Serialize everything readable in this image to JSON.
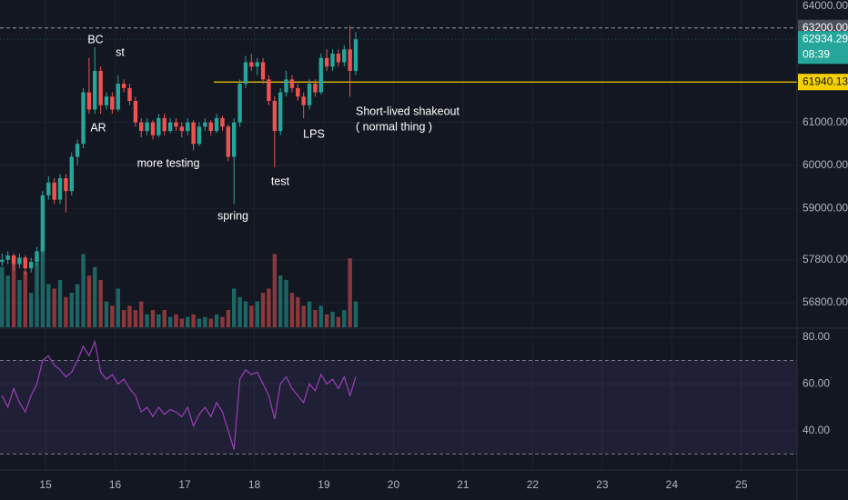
{
  "chart_data": {
    "type": "candlestick",
    "up_color": "#26a69a",
    "down_color": "#ef5350",
    "rsi_color": "#9c3fb8",
    "xlim": [
      14.345,
      25.8
    ],
    "xticks": [
      15,
      16,
      17,
      18,
      19,
      20,
      21,
      22,
      23,
      24,
      25
    ],
    "ylim": [
      56250,
      63850
    ],
    "yticks": [
      {
        "value": 64000,
        "label": "64000.00"
      },
      {
        "value": 61000,
        "label": "61000.00"
      },
      {
        "value": 60000,
        "label": "60000.00"
      },
      {
        "value": 59000,
        "label": "59000.00"
      },
      {
        "value": 57800,
        "label": "57800.00"
      },
      {
        "value": 56800,
        "label": "56800.00"
      }
    ],
    "marker_line": {
      "value": 63200,
      "label": "63200.00"
    },
    "last_price": 62934.29,
    "countdown": "08:39",
    "horizontal_line": 61940.13,
    "x": [
      14.375,
      14.458,
      14.542,
      14.625,
      14.708,
      14.792,
      14.875,
      14.958,
      15.042,
      15.125,
      15.208,
      15.292,
      15.375,
      15.458,
      15.542,
      15.625,
      15.708,
      15.792,
      15.875,
      15.958,
      16.042,
      16.125,
      16.208,
      16.292,
      16.375,
      16.458,
      16.542,
      16.625,
      16.708,
      16.792,
      16.875,
      16.958,
      17.042,
      17.125,
      17.208,
      17.292,
      17.375,
      17.458,
      17.542,
      17.625,
      17.708,
      17.792,
      17.875,
      17.958,
      18.042,
      18.125,
      18.208,
      18.292,
      18.375,
      18.458,
      18.542,
      18.625,
      18.708,
      18.792,
      18.875,
      18.958,
      19.042,
      19.125,
      19.208,
      19.292,
      19.375,
      19.458
    ],
    "ohlc": [
      [
        57750,
        57950,
        57650,
        57800
      ],
      [
        57800,
        58000,
        57700,
        57900
      ],
      [
        57900,
        57950,
        57550,
        57700
      ],
      [
        57700,
        57950,
        57600,
        57850
      ],
      [
        57850,
        57900,
        57450,
        57600
      ],
      [
        57600,
        57850,
        57500,
        57750
      ],
      [
        57750,
        58100,
        57650,
        58000
      ],
      [
        58000,
        59400,
        57950,
        59300
      ],
      [
        59300,
        59750,
        59200,
        59600
      ],
      [
        59600,
        59700,
        59100,
        59200
      ],
      [
        59200,
        59800,
        59100,
        59700
      ],
      [
        59700,
        59800,
        58900,
        59400
      ],
      [
        59400,
        60300,
        59300,
        60200
      ],
      [
        60200,
        60600,
        60000,
        60500
      ],
      [
        60500,
        61800,
        60400,
        61700
      ],
      [
        61700,
        62500,
        61200,
        61300
      ],
      [
        61300,
        62750,
        61200,
        62200
      ],
      [
        62200,
        62300,
        61200,
        61400
      ],
      [
        61400,
        61700,
        61300,
        61600
      ],
      [
        61600,
        61700,
        61200,
        61300
      ],
      [
        61300,
        62100,
        61250,
        61900
      ],
      [
        61900,
        62000,
        61700,
        61800
      ],
      [
        61800,
        61900,
        61400,
        61500
      ],
      [
        61500,
        61600,
        60900,
        61000
      ],
      [
        61000,
        61100,
        60650,
        60800
      ],
      [
        60800,
        61100,
        60700,
        61000
      ],
      [
        61000,
        61050,
        60600,
        60700
      ],
      [
        60700,
        61200,
        60650,
        61100
      ],
      [
        61100,
        61200,
        60700,
        60800
      ],
      [
        60800,
        61100,
        60750,
        61000
      ],
      [
        61000,
        61100,
        60800,
        60900
      ],
      [
        60900,
        61000,
        60650,
        60800
      ],
      [
        60800,
        61100,
        60700,
        61000
      ],
      [
        61000,
        61050,
        60350,
        60500
      ],
      [
        60500,
        61000,
        60450,
        60900
      ],
      [
        60900,
        61100,
        60800,
        61000
      ],
      [
        61000,
        61050,
        60700,
        60800
      ],
      [
        60800,
        61200,
        60750,
        61100
      ],
      [
        61100,
        61150,
        60800,
        60900
      ],
      [
        60900,
        60950,
        60100,
        60200
      ],
      [
        60200,
        61100,
        59100,
        61000
      ],
      [
        61000,
        62000,
        60900,
        61900
      ],
      [
        61900,
        62550,
        61800,
        62400
      ],
      [
        62400,
        62600,
        62200,
        62300
      ],
      [
        62300,
        62500,
        62100,
        62400
      ],
      [
        62400,
        62500,
        61900,
        62000
      ],
      [
        62000,
        62100,
        61400,
        61500
      ],
      [
        61500,
        61600,
        59950,
        60800
      ],
      [
        60800,
        61800,
        60700,
        61700
      ],
      [
        61700,
        62200,
        61600,
        62000
      ],
      [
        62000,
        62100,
        61700,
        61800
      ],
      [
        61800,
        61900,
        61500,
        61600
      ],
      [
        61600,
        61700,
        61100,
        61400
      ],
      [
        61400,
        62000,
        61300,
        61900
      ],
      [
        61900,
        62000,
        61600,
        61700
      ],
      [
        61700,
        62600,
        61650,
        62500
      ],
      [
        62500,
        62700,
        62200,
        62300
      ],
      [
        62300,
        62700,
        62200,
        62600
      ],
      [
        62600,
        62700,
        62300,
        62400
      ],
      [
        62400,
        62800,
        62300,
        62700
      ],
      [
        62700,
        63250,
        61600,
        62200
      ],
      [
        62200,
        63100,
        62100,
        62934.29
      ]
    ],
    "volumes": [
      70,
      60,
      80,
      55,
      65,
      40,
      75,
      95,
      50,
      45,
      55,
      35,
      40,
      50,
      85,
      60,
      70,
      55,
      30,
      25,
      45,
      20,
      25,
      20,
      30,
      15,
      20,
      15,
      20,
      12,
      15,
      10,
      12,
      15,
      10,
      12,
      10,
      15,
      12,
      20,
      45,
      35,
      30,
      25,
      30,
      40,
      45,
      85,
      60,
      55,
      40,
      35,
      25,
      30,
      20,
      25,
      15,
      18,
      12,
      20,
      80,
      30
    ],
    "rsi": [
      55,
      50,
      58,
      52,
      48,
      55,
      60,
      70,
      72,
      68,
      66,
      63,
      65,
      70,
      76,
      72,
      78,
      65,
      62,
      64,
      60,
      62,
      58,
      55,
      48,
      50,
      46,
      50,
      47,
      49,
      48,
      46,
      50,
      42,
      47,
      50,
      46,
      52,
      48,
      40,
      32,
      62,
      66,
      64,
      65,
      60,
      55,
      45,
      60,
      63,
      58,
      55,
      52,
      60,
      57,
      64,
      60,
      62,
      58,
      63,
      55,
      63
    ],
    "rsi_ylim": [
      24,
      83
    ],
    "rsi_yticks": [
      {
        "value": 80,
        "label": "80.00"
      },
      {
        "value": 60,
        "label": "60.00"
      },
      {
        "value": 40,
        "label": "40.00"
      }
    ],
    "rsi_levels": [
      70,
      30
    ],
    "annotations": [
      "BC",
      "st",
      "AR",
      "more testing",
      "spring",
      "test",
      "LPS",
      "Short-lived shakeout",
      "( normal thing )"
    ]
  }
}
